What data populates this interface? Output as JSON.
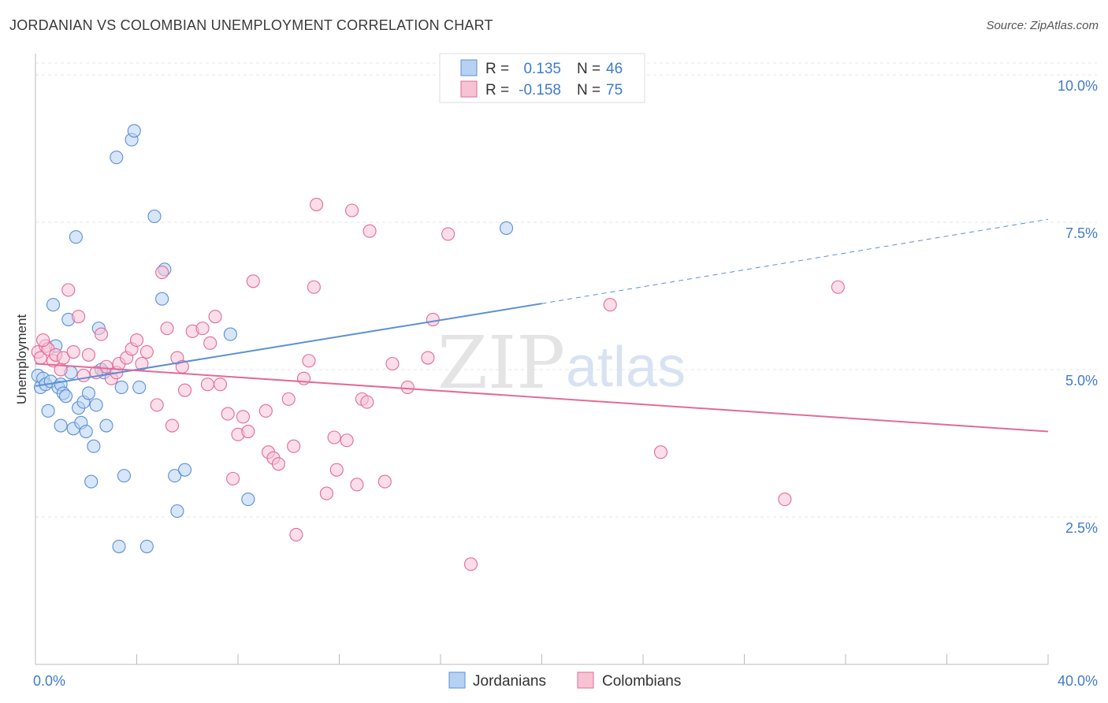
{
  "title": "JORDANIAN VS COLOMBIAN UNEMPLOYMENT CORRELATION CHART",
  "source": "Source: ZipAtlas.com",
  "chart_data": {
    "type": "scatter",
    "ylabel": "Unemployment",
    "xlabel": "",
    "xlim": [
      0,
      40
    ],
    "ylim": [
      0,
      10.2
    ],
    "x_tick_labels": [
      {
        "value": 0,
        "label": "0.0%"
      },
      {
        "value": 40,
        "label": "40.0%"
      }
    ],
    "y_tick_labels": [
      {
        "value": 2.5,
        "label": "2.5%"
      },
      {
        "value": 5.0,
        "label": "5.0%"
      },
      {
        "value": 7.5,
        "label": "7.5%"
      },
      {
        "value": 10.0,
        "label": "10.0%"
      }
    ],
    "watermark": {
      "zip": "ZIP",
      "atlas": "atlas"
    },
    "legend": [
      {
        "name": "Jordanians",
        "r_label": "R =",
        "r_value": "0.135",
        "n_label": "N =",
        "n_value": "46"
      },
      {
        "name": "Colombians",
        "r_label": "R =",
        "r_value": "-0.158",
        "n_label": "N =",
        "n_value": "75"
      }
    ],
    "series": [
      {
        "name": "Jordanians",
        "color": "#5b8fd6",
        "fill": "#b7d1f2",
        "trend": {
          "x0": 0,
          "y0": 4.72,
          "x1": 20,
          "y1": 6.12,
          "dash_x1": 40,
          "dash_y1": 7.55
        },
        "points": [
          [
            0.1,
            4.9
          ],
          [
            0.2,
            4.7
          ],
          [
            0.3,
            4.85
          ],
          [
            0.4,
            4.75
          ],
          [
            0.5,
            4.3
          ],
          [
            0.6,
            4.8
          ],
          [
            0.7,
            6.1
          ],
          [
            0.8,
            5.4
          ],
          [
            0.9,
            4.7
          ],
          [
            1.0,
            4.75
          ],
          [
            1.0,
            4.05
          ],
          [
            1.1,
            4.6
          ],
          [
            1.2,
            4.55
          ],
          [
            1.3,
            5.85
          ],
          [
            1.4,
            4.95
          ],
          [
            1.5,
            4.0
          ],
          [
            1.6,
            7.25
          ],
          [
            1.7,
            4.35
          ],
          [
            1.8,
            4.1
          ],
          [
            1.9,
            4.45
          ],
          [
            2.0,
            3.95
          ],
          [
            2.1,
            4.6
          ],
          [
            2.2,
            3.1
          ],
          [
            2.3,
            3.7
          ],
          [
            2.4,
            4.4
          ],
          [
            2.5,
            5.7
          ],
          [
            2.7,
            4.95
          ],
          [
            2.8,
            4.05
          ],
          [
            3.2,
            8.6
          ],
          [
            3.3,
            2.0
          ],
          [
            3.4,
            4.7
          ],
          [
            3.5,
            3.2
          ],
          [
            3.8,
            8.9
          ],
          [
            3.9,
            9.05
          ],
          [
            4.1,
            4.7
          ],
          [
            4.4,
            2.0
          ],
          [
            4.7,
            7.6
          ],
          [
            5.0,
            6.2
          ],
          [
            5.1,
            6.7
          ],
          [
            5.5,
            3.2
          ],
          [
            5.6,
            2.6
          ],
          [
            5.9,
            3.3
          ],
          [
            7.7,
            5.6
          ],
          [
            8.4,
            2.8
          ],
          [
            18.6,
            7.4
          ],
          [
            2.6,
            5.0
          ]
        ]
      },
      {
        "name": "Colombians",
        "color": "#e26b98",
        "fill": "#f7c3d4",
        "trend": {
          "x0": 0,
          "y0": 5.1,
          "x1": 40,
          "y1": 3.95
        },
        "points": [
          [
            0.1,
            5.3
          ],
          [
            0.2,
            5.2
          ],
          [
            0.4,
            5.4
          ],
          [
            0.5,
            5.35
          ],
          [
            0.7,
            5.15
          ],
          [
            0.8,
            5.25
          ],
          [
            1.0,
            5.0
          ],
          [
            1.1,
            5.2
          ],
          [
            1.3,
            6.35
          ],
          [
            1.5,
            5.3
          ],
          [
            1.7,
            5.9
          ],
          [
            1.9,
            4.9
          ],
          [
            2.1,
            5.25
          ],
          [
            2.4,
            4.95
          ],
          [
            2.6,
            5.6
          ],
          [
            2.8,
            5.05
          ],
          [
            3.0,
            4.85
          ],
          [
            3.2,
            4.95
          ],
          [
            3.3,
            5.1
          ],
          [
            3.6,
            5.2
          ],
          [
            3.8,
            5.35
          ],
          [
            4.0,
            5.5
          ],
          [
            4.2,
            5.1
          ],
          [
            4.4,
            5.3
          ],
          [
            4.8,
            4.4
          ],
          [
            5.0,
            6.65
          ],
          [
            5.2,
            5.7
          ],
          [
            5.4,
            4.05
          ],
          [
            5.6,
            5.2
          ],
          [
            5.8,
            5.05
          ],
          [
            5.9,
            4.65
          ],
          [
            6.2,
            5.65
          ],
          [
            6.6,
            5.7
          ],
          [
            6.8,
            4.75
          ],
          [
            6.9,
            5.45
          ],
          [
            7.1,
            5.9
          ],
          [
            7.3,
            4.75
          ],
          [
            7.6,
            4.25
          ],
          [
            7.8,
            3.15
          ],
          [
            8.0,
            3.9
          ],
          [
            8.2,
            4.2
          ],
          [
            8.4,
            3.95
          ],
          [
            8.6,
            6.5
          ],
          [
            9.1,
            4.3
          ],
          [
            9.2,
            3.6
          ],
          [
            9.4,
            3.5
          ],
          [
            9.6,
            3.4
          ],
          [
            10.0,
            4.5
          ],
          [
            10.2,
            3.7
          ],
          [
            10.3,
            2.2
          ],
          [
            10.6,
            4.85
          ],
          [
            10.8,
            5.15
          ],
          [
            11.0,
            6.4
          ],
          [
            11.1,
            7.8
          ],
          [
            11.5,
            2.9
          ],
          [
            11.8,
            3.85
          ],
          [
            11.9,
            3.3
          ],
          [
            12.3,
            3.8
          ],
          [
            12.5,
            7.7
          ],
          [
            12.7,
            3.05
          ],
          [
            12.9,
            4.5
          ],
          [
            13.1,
            4.45
          ],
          [
            13.2,
            7.35
          ],
          [
            13.8,
            3.1
          ],
          [
            14.1,
            5.1
          ],
          [
            14.7,
            4.7
          ],
          [
            15.5,
            5.2
          ],
          [
            15.7,
            5.85
          ],
          [
            16.3,
            7.3
          ],
          [
            17.2,
            1.7
          ],
          [
            22.7,
            6.1
          ],
          [
            24.7,
            3.6
          ],
          [
            29.6,
            2.8
          ],
          [
            31.7,
            6.4
          ],
          [
            0.3,
            5.5
          ]
        ]
      }
    ]
  }
}
